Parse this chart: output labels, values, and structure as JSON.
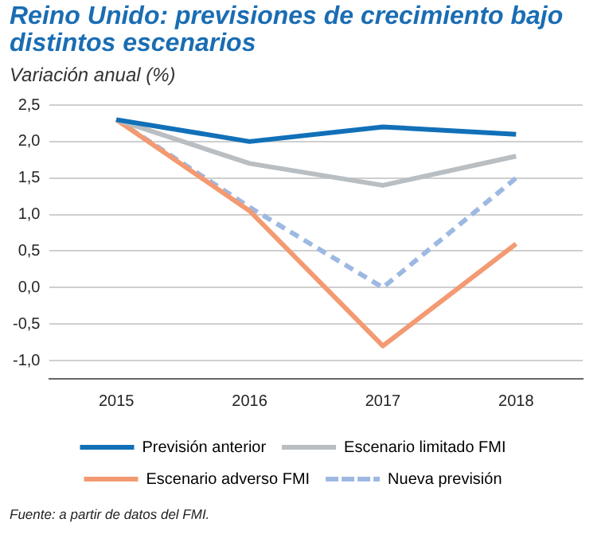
{
  "chart_data": {
    "type": "line",
    "title": "Reino Unido: previsiones de crecimiento bajo distintos escenarios",
    "subtitle": "Variación anual (%)",
    "categories": [
      "2015",
      "2016",
      "2017",
      "2018"
    ],
    "series": [
      {
        "name": "Previsión anterior",
        "color": "#1170b8",
        "values": [
          2.3,
          2.0,
          2.2,
          2.1
        ]
      },
      {
        "name": "Escenario limitado FMI",
        "color": "#b9bec2",
        "values": [
          2.3,
          1.7,
          1.4,
          1.8
        ]
      },
      {
        "name": "Escenario adverso FMI",
        "color": "#f39a72",
        "values": [
          2.3,
          1.05,
          -0.8,
          0.6
        ]
      },
      {
        "name": "Nueva previsión",
        "color": "#9db9e2",
        "values": [
          2.3,
          1.1,
          0.0,
          1.5
        ],
        "line_style": "dashed"
      }
    ],
    "ylim": [
      -1.25,
      2.5
    ],
    "yticks": [
      {
        "value": -1,
        "label": "-1,0"
      },
      {
        "value": -0.5,
        "label": "-0,5"
      },
      {
        "value": 0,
        "label": "0,0"
      },
      {
        "value": 0.5,
        "label": "0,5"
      },
      {
        "value": 1,
        "label": "1,0"
      },
      {
        "value": 1.5,
        "label": "1,5"
      },
      {
        "value": 2,
        "label": "2,0"
      },
      {
        "value": 2.5,
        "label": "2,5"
      }
    ],
    "grid": "y",
    "legend": "bottom",
    "marker": "none",
    "line_style": "solid",
    "annotations": [
      "Fuente: a partir de datos del FMI."
    ]
  }
}
